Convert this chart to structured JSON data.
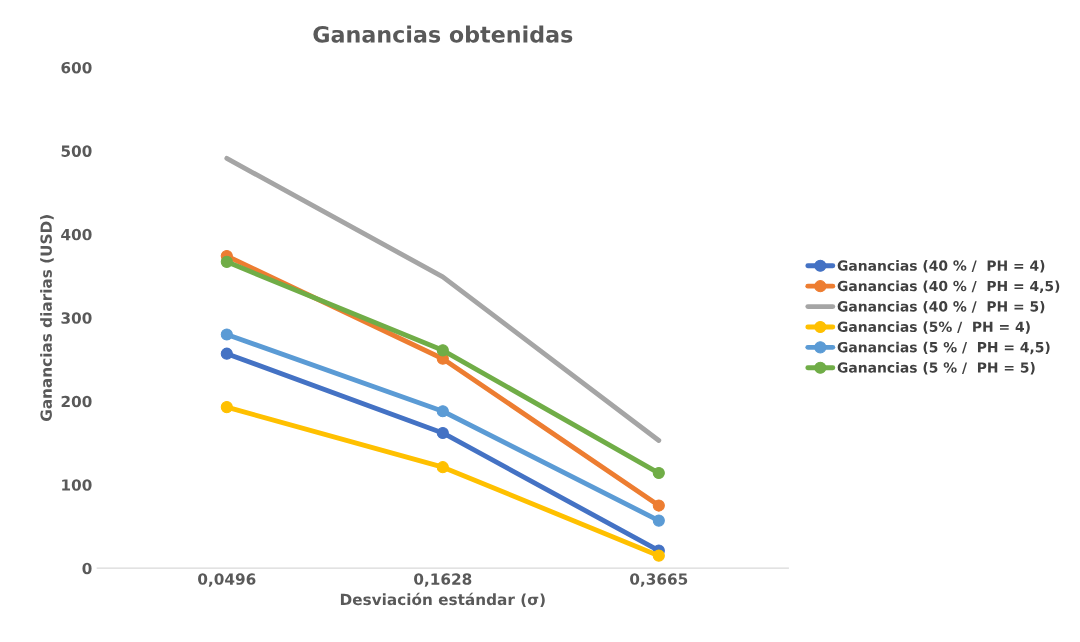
{
  "chart_data": {
    "type": "line",
    "title": "Ganancias obtenidas",
    "xlabel": "Desviación estándar (σ)",
    "ylabel": "Ganancias diarias (USD)",
    "categories": [
      "0,0496",
      "0,1628",
      "0,3665"
    ],
    "series": [
      {
        "name": "Ganancias (40 % /  PH = 4)",
        "color": "#4472c4",
        "values": [
          257,
          162,
          21
        ],
        "marker": "circle"
      },
      {
        "name": "Ganancias (40 % /  PH = 4,5)",
        "color": "#ed7d31",
        "values": [
          374,
          251,
          75
        ],
        "marker": "circle"
      },
      {
        "name": "Ganancias (40 % /  PH = 5)",
        "color": "#a5a5a5",
        "values": [
          491,
          349,
          153
        ],
        "marker": "none"
      },
      {
        "name": "Ganancias (5% /  PH = 4)",
        "color": "#ffc000",
        "values": [
          193,
          121,
          15
        ],
        "marker": "circle"
      },
      {
        "name": "Ganancias (5 % /  PH = 4,5)",
        "color": "#5b9bd5",
        "values": [
          280,
          188,
          57
        ],
        "marker": "circle"
      },
      {
        "name": "Ganancias (5 % /  PH = 5)",
        "color": "#70ad47",
        "values": [
          367,
          261,
          114
        ],
        "marker": "circle"
      }
    ],
    "ylim": [
      0,
      600
    ],
    "yticks": [
      0,
      100,
      200,
      300,
      400,
      500,
      600
    ],
    "grid": false,
    "legend": "right"
  }
}
